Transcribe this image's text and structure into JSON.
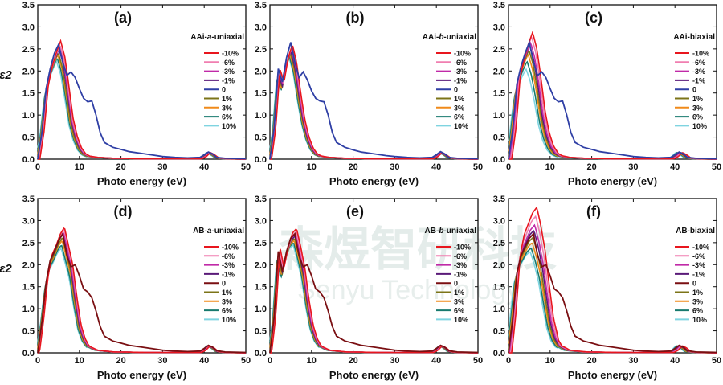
{
  "watermark": {
    "main": "森煜智研科技",
    "sub": "Senyu Technology"
  },
  "colors": {
    "-10%": "#e8161e",
    "-6%": "#f07fb0",
    "-3%": "#c02aa8",
    "-1%": "#5a1a78",
    "0_AA": "#2f3fa5",
    "0_AB": "#7a0f12",
    "1%": "#7c7418",
    "3%": "#f08a1a",
    "6%": "#177a6e",
    "10%": "#7fd4e0"
  },
  "chart_data": [
    {
      "type": "line",
      "panel": "(a)",
      "title": "AAi-a-uniaxial",
      "title_parts": [
        "AAi-",
        "a",
        "-uniaxial"
      ],
      "xlabel": "Photo energy (eV)",
      "ylabel": "ε2",
      "xlim": [
        0,
        50
      ],
      "ylim": [
        0,
        3.5
      ],
      "xticks": [
        0,
        10,
        20,
        30,
        40,
        50
      ],
      "yticks": [
        0.0,
        0.5,
        1.0,
        1.5,
        2.0,
        2.5,
        3.0,
        3.5
      ],
      "legend": [
        "-10%",
        "-6%",
        "-3%",
        "-1%",
        "0",
        "1%",
        "3%",
        "6%",
        "10%"
      ],
      "zero_color": "0_AA",
      "unstrained": {
        "x": [
          0,
          1,
          2,
          3,
          4,
          5,
          6,
          7,
          8,
          9,
          10,
          11,
          12,
          13,
          14,
          15,
          16,
          18,
          20,
          22,
          25,
          28,
          30,
          33,
          36,
          39,
          40,
          41,
          42,
          43,
          45,
          50
        ],
        "y": [
          0,
          0.6,
          1.6,
          2.05,
          2.4,
          2.6,
          2.2,
          1.9,
          1.98,
          1.85,
          1.6,
          1.38,
          1.3,
          1.32,
          1.0,
          0.6,
          0.38,
          0.27,
          0.22,
          0.17,
          0.13,
          0.09,
          0.06,
          0.04,
          0.03,
          0.04,
          0.1,
          0.16,
          0.12,
          0.04,
          0.02,
          0.01
        ]
      },
      "strained": {
        "x": [
          0,
          1,
          2,
          3,
          4,
          5,
          6,
          7,
          8,
          9,
          10,
          11,
          12,
          14,
          18,
          25,
          39,
          40,
          41,
          42,
          43,
          45,
          50
        ],
        "y": [
          0,
          0.6,
          1.6,
          2.05,
          2.35,
          2.6,
          2.25,
          1.6,
          0.9,
          0.5,
          0.25,
          0.12,
          0.07,
          0.04,
          0.02,
          0.01,
          0.01,
          0.06,
          0.15,
          0.1,
          0.03,
          0.01,
          0.0
        ]
      },
      "peaks": {
        "-10%": 2.68,
        "-6%": 2.6,
        "-3%": 2.55,
        "-1%": 2.5,
        "1%": 2.42,
        "3%": 2.37,
        "6%": 2.3,
        "10%": 2.22
      },
      "shifts": {
        "-10%": 0.5,
        "-6%": 0.35,
        "-3%": 0.2,
        "-1%": 0.1,
        "1%": -0.1,
        "3%": -0.2,
        "6%": -0.35,
        "10%": -0.5
      }
    },
    {
      "type": "line",
      "panel": "(b)",
      "title": "AAi-b-uniaxial",
      "title_parts": [
        "AAi-",
        "b",
        "-uniaxial"
      ],
      "xlabel": "Photo energy (eV)",
      "ylabel": "",
      "xlim": [
        0,
        50
      ],
      "ylim": [
        0,
        3.5
      ],
      "xticks": [
        0,
        10,
        20,
        30,
        40,
        50
      ],
      "yticks": [
        0.0,
        0.5,
        1.0,
        1.5,
        2.0,
        2.5,
        3.0,
        3.5
      ],
      "legend": [
        "-10%",
        "-6%",
        "-3%",
        "-1%",
        "0",
        "1%",
        "3%",
        "6%",
        "10%"
      ],
      "zero_color": "0_AA",
      "unstrained": {
        "x": [
          0,
          1,
          2,
          3,
          4,
          5,
          6,
          7,
          8,
          9,
          10,
          11,
          12,
          13,
          14,
          15,
          16,
          18,
          20,
          22,
          25,
          28,
          30,
          33,
          36,
          39,
          40,
          41,
          42,
          43,
          45,
          50
        ],
        "y": [
          0,
          0.7,
          2.05,
          1.75,
          2.3,
          2.65,
          2.2,
          1.85,
          1.98,
          1.8,
          1.55,
          1.38,
          1.32,
          1.3,
          1.0,
          0.6,
          0.38,
          0.27,
          0.21,
          0.16,
          0.12,
          0.08,
          0.06,
          0.04,
          0.03,
          0.04,
          0.1,
          0.17,
          0.12,
          0.04,
          0.02,
          0.01
        ]
      },
      "strained": {
        "x": [
          0,
          1,
          2,
          3,
          4,
          5,
          6,
          7,
          8,
          9,
          10,
          11,
          12,
          14,
          18,
          25,
          39,
          40,
          41,
          42,
          43,
          45,
          50
        ],
        "y": [
          0,
          0.7,
          2.05,
          1.75,
          2.3,
          2.6,
          2.2,
          1.5,
          0.9,
          0.5,
          0.25,
          0.12,
          0.07,
          0.04,
          0.02,
          0.01,
          0.01,
          0.06,
          0.15,
          0.1,
          0.03,
          0.01,
          0.0
        ]
      },
      "peaks": {
        "-10%": 2.6,
        "-6%": 2.55,
        "-3%": 2.5,
        "-1%": 2.45,
        "1%": 2.4,
        "3%": 2.36,
        "6%": 2.32,
        "10%": 2.3
      },
      "shifts": {
        "-10%": 0.4,
        "-6%": 0.3,
        "-3%": 0.15,
        "-1%": 0.05,
        "1%": -0.05,
        "3%": -0.15,
        "6%": -0.3,
        "10%": -0.4
      }
    },
    {
      "type": "line",
      "panel": "(c)",
      "title": "AAi-biaxial",
      "title_parts": [
        "AAi-biaxial",
        "",
        ""
      ],
      "xlabel": "Photo energy (eV)",
      "ylabel": "",
      "xlim": [
        0,
        50
      ],
      "ylim": [
        0,
        3.5
      ],
      "xticks": [
        0,
        10,
        20,
        30,
        40,
        50
      ],
      "yticks": [
        0.0,
        0.5,
        1.0,
        1.5,
        2.0,
        2.5,
        3.0,
        3.5
      ],
      "legend": [
        "-10%",
        "-6%",
        "-3%",
        "-1%",
        "0",
        "1%",
        "3%",
        "6%",
        "10%"
      ],
      "zero_color": "0_AA",
      "unstrained": {
        "x": [
          0,
          1,
          2,
          3,
          4,
          5,
          6,
          7,
          8,
          9,
          10,
          11,
          12,
          13,
          14,
          15,
          16,
          18,
          20,
          22,
          25,
          28,
          30,
          33,
          36,
          39,
          40,
          41,
          42,
          43,
          45,
          50
        ],
        "y": [
          0,
          0.65,
          1.7,
          2.1,
          2.4,
          2.65,
          2.2,
          1.9,
          1.98,
          1.85,
          1.6,
          1.38,
          1.3,
          1.32,
          1.0,
          0.6,
          0.38,
          0.27,
          0.22,
          0.17,
          0.13,
          0.09,
          0.06,
          0.04,
          0.03,
          0.04,
          0.1,
          0.16,
          0.12,
          0.04,
          0.02,
          0.01
        ]
      },
      "strained": {
        "x": [
          0,
          1,
          2,
          3,
          4,
          5,
          6,
          7,
          8,
          9,
          10,
          11,
          12,
          14,
          18,
          25,
          39,
          40,
          41,
          42,
          43,
          45,
          50
        ],
        "y": [
          0,
          0.65,
          1.7,
          2.1,
          2.4,
          2.65,
          2.3,
          1.7,
          1.0,
          0.55,
          0.28,
          0.14,
          0.08,
          0.04,
          0.02,
          0.01,
          0.01,
          0.06,
          0.15,
          0.1,
          0.03,
          0.01,
          0.0
        ]
      },
      "peaks": {
        "-10%": 2.88,
        "-6%": 2.78,
        "-3%": 2.65,
        "-1%": 2.58,
        "1%": 2.48,
        "3%": 2.38,
        "6%": 2.22,
        "10%": 2.05
      },
      "shifts": {
        "-10%": 0.8,
        "-6%": 0.55,
        "-3%": 0.3,
        "-1%": 0.1,
        "1%": -0.1,
        "3%": -0.3,
        "6%": -0.55,
        "10%": -0.8
      }
    },
    {
      "type": "line",
      "panel": "(d)",
      "title": "AB-a-uniaxial",
      "title_parts": [
        "AB-",
        "a",
        "-uniaxial"
      ],
      "xlabel": "Photo energy (eV)",
      "ylabel": "ε2",
      "xlim": [
        0,
        50
      ],
      "ylim": [
        0,
        3.5
      ],
      "xticks": [
        0,
        10,
        20,
        30,
        40,
        50
      ],
      "yticks": [
        0.0,
        0.5,
        1.0,
        1.5,
        2.0,
        2.5,
        3.0,
        3.5
      ],
      "legend": [
        "-10%",
        "-6%",
        "-3%",
        "-1%",
        "0",
        "1%",
        "3%",
        "6%",
        "10%"
      ],
      "zero_color": "0_AB",
      "unstrained": {
        "x": [
          0,
          1,
          2,
          3,
          4,
          5,
          6,
          7,
          8,
          9,
          10,
          11,
          12,
          13,
          14,
          15,
          16,
          18,
          20,
          22,
          25,
          28,
          30,
          33,
          36,
          39,
          40,
          41,
          42,
          43,
          45,
          50
        ],
        "y": [
          0,
          0.7,
          1.6,
          2.1,
          2.3,
          2.55,
          2.7,
          2.2,
          1.95,
          2.0,
          1.75,
          1.45,
          1.38,
          1.25,
          0.95,
          0.6,
          0.38,
          0.27,
          0.22,
          0.17,
          0.13,
          0.09,
          0.06,
          0.04,
          0.03,
          0.04,
          0.1,
          0.17,
          0.13,
          0.05,
          0.02,
          0.01
        ]
      },
      "strained": {
        "x": [
          0,
          1,
          2,
          3,
          4,
          5,
          6,
          7,
          8,
          9,
          10,
          11,
          12,
          14,
          18,
          25,
          39,
          40,
          41,
          42,
          43,
          45,
          50
        ],
        "y": [
          0,
          0.7,
          1.6,
          2.1,
          2.3,
          2.55,
          2.7,
          2.3,
          1.9,
          1.2,
          0.6,
          0.3,
          0.15,
          0.06,
          0.02,
          0.01,
          0.01,
          0.06,
          0.16,
          0.11,
          0.03,
          0.01,
          0.0
        ]
      },
      "peaks": {
        "-10%": 2.85,
        "-6%": 2.8,
        "-3%": 2.75,
        "-1%": 2.7,
        "1%": 2.62,
        "3%": 2.55,
        "6%": 2.45,
        "10%": 2.38
      },
      "shifts": {
        "-10%": 0.4,
        "-6%": 0.3,
        "-3%": 0.15,
        "-1%": 0.05,
        "1%": -0.05,
        "3%": -0.15,
        "6%": -0.3,
        "10%": -0.4
      }
    },
    {
      "type": "line",
      "panel": "(e)",
      "title": "AB-b-uniaxial",
      "title_parts": [
        "AB-",
        "b",
        "-uniaxial"
      ],
      "xlabel": "Photo energy (eV)",
      "ylabel": "",
      "xlim": [
        0,
        50
      ],
      "ylim": [
        0,
        3.5
      ],
      "xticks": [
        0,
        10,
        20,
        30,
        40,
        50
      ],
      "yticks": [
        0.0,
        0.5,
        1.0,
        1.5,
        2.0,
        2.5,
        3.0,
        3.5
      ],
      "legend": [
        "-10%",
        "-6%",
        "-3%",
        "-1%",
        "0",
        "1%",
        "3%",
        "6%",
        "10%"
      ],
      "zero_color": "0_AB",
      "unstrained": {
        "x": [
          0,
          1,
          2,
          3,
          4,
          5,
          6,
          7,
          8,
          9,
          10,
          11,
          12,
          13,
          14,
          15,
          16,
          18,
          20,
          22,
          25,
          28,
          30,
          33,
          36,
          39,
          40,
          41,
          42,
          43,
          45,
          50
        ],
        "y": [
          0,
          0.8,
          2.3,
          1.85,
          2.3,
          2.6,
          2.7,
          2.2,
          1.95,
          2.0,
          1.75,
          1.45,
          1.38,
          1.25,
          0.95,
          0.6,
          0.38,
          0.27,
          0.22,
          0.17,
          0.13,
          0.09,
          0.06,
          0.04,
          0.03,
          0.04,
          0.1,
          0.17,
          0.13,
          0.05,
          0.02,
          0.01
        ]
      },
      "strained": {
        "x": [
          0,
          1,
          2,
          3,
          4,
          5,
          6,
          7,
          8,
          9,
          10,
          11,
          12,
          14,
          18,
          25,
          39,
          40,
          41,
          42,
          43,
          45,
          50
        ],
        "y": [
          0,
          0.8,
          2.3,
          1.85,
          2.3,
          2.6,
          2.7,
          2.3,
          1.85,
          1.15,
          0.6,
          0.3,
          0.15,
          0.06,
          0.02,
          0.01,
          0.01,
          0.06,
          0.16,
          0.11,
          0.03,
          0.01,
          0.0
        ]
      },
      "peaks": {
        "-10%": 2.82,
        "-6%": 2.75,
        "-3%": 2.7,
        "-1%": 2.65,
        "1%": 2.6,
        "3%": 2.55,
        "6%": 2.5,
        "10%": 2.45
      },
      "shifts": {
        "-10%": 0.4,
        "-6%": 0.3,
        "-3%": 0.15,
        "-1%": 0.05,
        "1%": -0.05,
        "3%": -0.15,
        "6%": -0.3,
        "10%": -0.4
      }
    },
    {
      "type": "line",
      "panel": "(f)",
      "title": "AB-biaxial",
      "title_parts": [
        "AB-biaxial",
        "",
        ""
      ],
      "xlabel": "Photo energy (eV)",
      "ylabel": "",
      "xlim": [
        0,
        50
      ],
      "ylim": [
        0,
        3.5
      ],
      "xticks": [
        0,
        10,
        20,
        30,
        40,
        50
      ],
      "yticks": [
        0.0,
        0.5,
        1.0,
        1.5,
        2.0,
        2.5,
        3.0,
        3.5
      ],
      "legend": [
        "-10%",
        "-6%",
        "-3%",
        "-1%",
        "0",
        "1%",
        "3%",
        "6%",
        "10%"
      ],
      "zero_color": "0_AB",
      "unstrained": {
        "x": [
          0,
          1,
          2,
          3,
          4,
          5,
          6,
          7,
          8,
          9,
          10,
          11,
          12,
          13,
          14,
          15,
          16,
          18,
          20,
          22,
          25,
          28,
          30,
          33,
          36,
          39,
          40,
          41,
          42,
          43,
          45,
          50
        ],
        "y": [
          0,
          0.75,
          1.8,
          2.2,
          2.4,
          2.6,
          2.7,
          2.2,
          1.95,
          2.0,
          1.75,
          1.45,
          1.38,
          1.25,
          0.95,
          0.6,
          0.38,
          0.27,
          0.22,
          0.17,
          0.13,
          0.09,
          0.06,
          0.04,
          0.03,
          0.04,
          0.1,
          0.17,
          0.13,
          0.05,
          0.02,
          0.01
        ]
      },
      "strained": {
        "x": [
          0,
          1,
          2,
          3,
          4,
          5,
          6,
          7,
          8,
          9,
          10,
          11,
          12,
          14,
          18,
          25,
          39,
          40,
          41,
          42,
          43,
          45,
          50
        ],
        "y": [
          0,
          0.75,
          1.8,
          2.2,
          2.4,
          2.6,
          2.7,
          2.35,
          1.9,
          1.25,
          0.65,
          0.32,
          0.16,
          0.06,
          0.02,
          0.01,
          0.01,
          0.06,
          0.16,
          0.11,
          0.03,
          0.01,
          0.0
        ]
      },
      "peaks": {
        "-10%": 3.3,
        "-6%": 3.1,
        "-3%": 2.9,
        "-1%": 2.78,
        "1%": 2.62,
        "3%": 2.5,
        "6%": 2.38,
        "10%": 2.3
      },
      "shifts": {
        "-10%": 0.8,
        "-6%": 0.55,
        "-3%": 0.3,
        "-1%": 0.1,
        "1%": -0.1,
        "3%": -0.3,
        "6%": -0.55,
        "10%": -0.8
      }
    }
  ]
}
